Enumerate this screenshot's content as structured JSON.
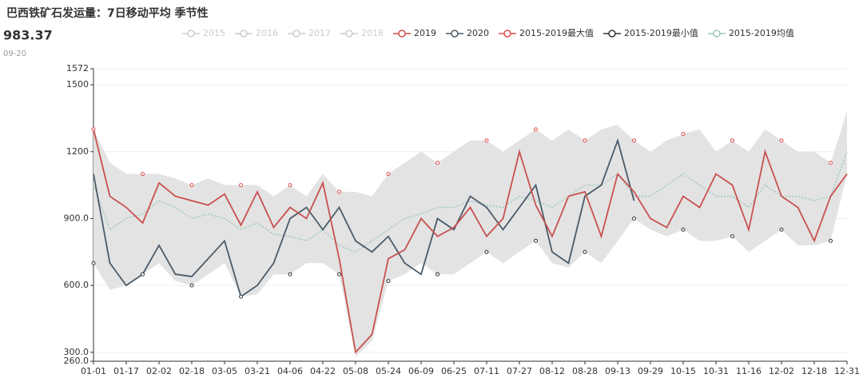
{
  "header": {
    "title": "巴西铁矿石发运量：7日移动平均 季节性",
    "value": "983.37",
    "date": "09-20"
  },
  "chart_data": {
    "type": "line",
    "hidden_series": [
      {
        "name": "2015"
      },
      {
        "name": "2016"
      },
      {
        "name": "2017"
      },
      {
        "name": "2018"
      }
    ],
    "categories": [
      "01-01",
      null,
      "01-17",
      null,
      "02-02",
      null,
      "02-18",
      null,
      "03-05",
      null,
      "03-21",
      null,
      "04-06",
      null,
      "04-22",
      null,
      "05-08",
      null,
      "05-24",
      null,
      "06-09",
      null,
      "06-25",
      null,
      "07-11",
      null,
      "07-27",
      null,
      "08-12",
      null,
      "08-28",
      null,
      "09-13",
      null,
      "09-29",
      null,
      "10-15",
      null,
      "10-31",
      null,
      "11-16",
      null,
      "12-02",
      null,
      "12-18",
      null,
      "12-31"
    ],
    "series": [
      {
        "name": "2019",
        "color": "#c9504f",
        "values": [
          1300,
          1000,
          950,
          880,
          1060,
          1000,
          980,
          960,
          1010,
          870,
          1020,
          860,
          950,
          900,
          1060,
          720,
          300,
          380,
          720,
          760,
          900,
          820,
          860,
          950,
          820,
          900,
          1200,
          960,
          820,
          1000,
          1020,
          820,
          1100,
          1020,
          900,
          860,
          1000,
          950,
          1100,
          1050,
          850,
          1200,
          1000,
          950,
          800,
          1000,
          1100
        ]
      },
      {
        "name": "2020",
        "color": "#4a5a68",
        "values": [
          1100,
          700,
          600,
          650,
          780,
          650,
          640,
          720,
          800,
          550,
          600,
          700,
          900,
          950,
          850,
          950,
          800,
          750,
          820,
          700,
          650,
          900,
          850,
          1000,
          950,
          850,
          950,
          1050,
          750,
          700,
          1000,
          1050,
          1250,
          980,
          null,
          null,
          null,
          null,
          null,
          null,
          null,
          null,
          null,
          null,
          null,
          null,
          null
        ]
      },
      {
        "name": "2015-2019最大值",
        "color": "#e04b4b",
        "values": [
          1300,
          1150,
          1100,
          1100,
          1100,
          1080,
          1050,
          1080,
          1050,
          1050,
          1050,
          1000,
          1050,
          1000,
          1100,
          1020,
          1020,
          1000,
          1100,
          1150,
          1200,
          1150,
          1200,
          1250,
          1250,
          1200,
          1250,
          1300,
          1250,
          1300,
          1250,
          1300,
          1320,
          1250,
          1200,
          1250,
          1280,
          1300,
          1200,
          1250,
          1200,
          1300,
          1250,
          1200,
          1200,
          1150,
          1380
        ]
      },
      {
        "name": "2015-2019最小值",
        "color": "#333333",
        "values": [
          700,
          580,
          600,
          650,
          700,
          620,
          600,
          650,
          700,
          550,
          560,
          650,
          650,
          700,
          700,
          650,
          280,
          350,
          620,
          650,
          700,
          650,
          650,
          700,
          750,
          700,
          750,
          800,
          700,
          680,
          750,
          700,
          800,
          900,
          850,
          820,
          850,
          800,
          800,
          820,
          750,
          800,
          850,
          780,
          780,
          800,
          1100
        ]
      },
      {
        "name": "2015-2019均值",
        "color": "#9dc8bb",
        "values": [
          1050,
          850,
          900,
          920,
          980,
          950,
          900,
          920,
          900,
          850,
          880,
          830,
          820,
          800,
          850,
          780,
          750,
          800,
          850,
          900,
          920,
          950,
          950,
          980,
          960,
          950,
          1000,
          980,
          950,
          1000,
          1050,
          1050,
          1100,
          1000,
          1000,
          1050,
          1100,
          1050,
          1000,
          1000,
          950,
          1050,
          1000,
          1000,
          980,
          1000,
          1200
        ]
      }
    ],
    "ylim": [
      260,
      1572
    ],
    "yticks": [
      {
        "value": 260,
        "label": "260.0"
      },
      {
        "value": 300,
        "label": "300.0"
      },
      {
        "value": 600,
        "label": "600.0"
      },
      {
        "value": 900,
        "label": "900.0"
      },
      1200,
      1500,
      1572
    ],
    "band_color": "#e3e3e3",
    "hidden_color": "#cccccc"
  }
}
